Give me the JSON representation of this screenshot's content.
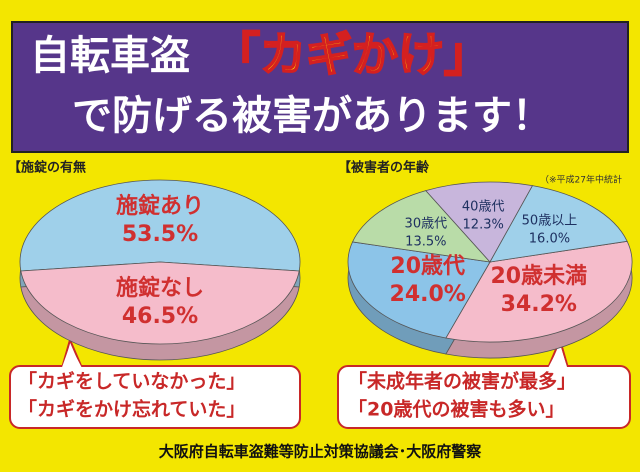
{
  "banner": {
    "line1a": "自転車盗",
    "line1b": "「カギかけ」",
    "line2": "で防げる被害があります！"
  },
  "chart_data": [
    {
      "type": "pie",
      "title": "【施錠の有無",
      "categories": [
        "施錠あり",
        "施錠なし"
      ],
      "values": [
        53.5,
        46.5
      ],
      "value_labels": [
        "53.5%",
        "46.5%"
      ],
      "colors": [
        "#9fd0ea",
        "#f5bccb"
      ]
    },
    {
      "type": "pie",
      "title": "【被害者の年齢",
      "note": "（※平成27年中統計",
      "categories": [
        "20歳未満",
        "20歳代",
        "30歳代",
        "40歳代",
        "50歳以上"
      ],
      "values": [
        34.2,
        24.0,
        13.5,
        12.3,
        16.0
      ],
      "value_labels": [
        "34.2%",
        "24.0%",
        "13.5%",
        "12.3%",
        "16.0%"
      ],
      "colors": [
        "#f5bccb",
        "#8cc4e8",
        "#b9dca8",
        "#c8b6dc",
        "#9fd0ea"
      ]
    }
  ],
  "callouts": [
    [
      "「カギをしていなかった」",
      "「カギをかけ忘れていた」"
    ],
    [
      "「未成年者の被害が最多」",
      "「20歳代の被害も多い」"
    ]
  ],
  "footer": "大阪府自転車盗難等防止対策協議会･大阪府警察"
}
